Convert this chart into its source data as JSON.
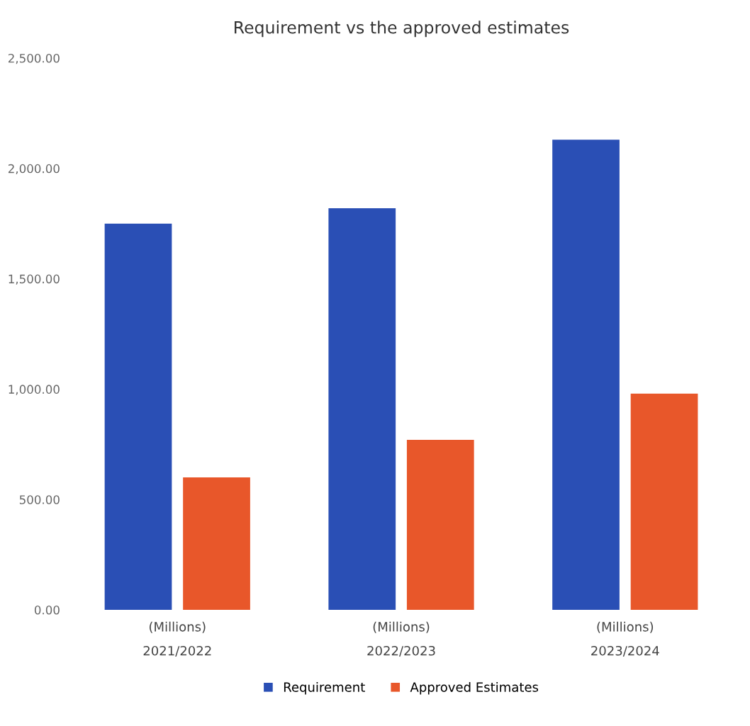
{
  "chart_data": {
    "type": "bar",
    "title": "Requirement vs the approved estimates",
    "categories": [
      "(Millions)\n2021/2022",
      "(Millions)\n2022/2023",
      "(Millions)\n2023/2024"
    ],
    "series": [
      {
        "name": "Requirement",
        "color": "#2a4fb5",
        "values": [
          1750,
          1820,
          2130
        ]
      },
      {
        "name": "Approved Estimates",
        "color": "#e8572a",
        "values": [
          600,
          770,
          980
        ]
      }
    ],
    "ylim": [
      0,
      2500
    ],
    "yticks": [
      {
        "value": 0,
        "label": "0.00"
      },
      {
        "value": 500,
        "label": "500.00"
      },
      {
        "value": 1000,
        "label": "1,000.00"
      },
      {
        "value": 1500,
        "label": "1,500.00"
      },
      {
        "value": 2000,
        "label": "2,000.00"
      },
      {
        "value": 2500,
        "label": "2,500.00"
      }
    ],
    "grid": false,
    "legend": "bottom"
  }
}
